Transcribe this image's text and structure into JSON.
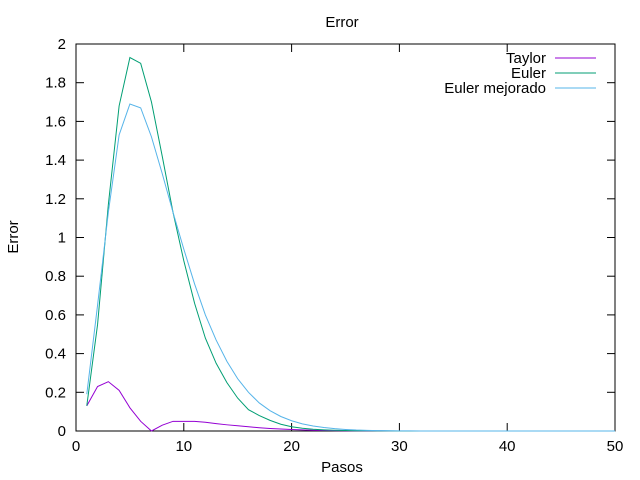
{
  "chart_data": {
    "type": "line",
    "title": "Error",
    "xlabel": "Pasos",
    "ylabel": "Error",
    "xlim": [
      0,
      50
    ],
    "ylim": [
      0,
      2
    ],
    "xticks": [
      0,
      10,
      20,
      30,
      40,
      50
    ],
    "yticks": [
      0,
      0.2,
      0.4,
      0.6,
      0.8,
      1,
      1.2,
      1.4,
      1.6,
      1.8,
      2
    ],
    "grid": false,
    "legend_position": "top-right",
    "series": [
      {
        "name": "Taylor",
        "color": "#9400d3",
        "x": [
          1,
          2,
          3,
          4,
          5,
          6,
          7,
          8,
          9,
          10,
          11,
          12,
          13,
          14,
          15,
          16,
          17,
          18,
          19,
          20,
          21,
          22,
          23,
          24,
          25,
          26,
          27,
          28,
          29,
          30,
          31,
          32,
          33,
          34,
          35,
          36,
          37,
          38,
          39,
          40,
          41,
          42,
          43,
          44,
          45,
          46,
          47,
          48,
          49,
          50
        ],
        "y": [
          0.13,
          0.23,
          0.255,
          0.21,
          0.12,
          0.05,
          0.0,
          0.03,
          0.05,
          0.05,
          0.05,
          0.045,
          0.038,
          0.032,
          0.027,
          0.022,
          0.017,
          0.013,
          0.01,
          0.008,
          0.006,
          0.004,
          0.003,
          0.002,
          0.0015,
          0.001,
          0.0007,
          0.0005,
          0.0003,
          0.0002,
          0,
          0,
          0,
          0,
          0,
          0,
          0,
          0,
          0,
          0,
          0,
          0,
          0,
          0,
          0,
          0,
          0,
          0,
          0,
          0
        ]
      },
      {
        "name": "Euler",
        "color": "#009e73",
        "x": [
          1,
          2,
          3,
          4,
          5,
          6,
          7,
          8,
          9,
          10,
          11,
          12,
          13,
          14,
          15,
          16,
          17,
          18,
          19,
          20,
          21,
          22,
          23,
          24,
          25,
          26,
          27,
          28,
          29,
          30,
          31,
          32,
          33,
          34,
          35,
          36,
          37,
          38,
          39,
          40,
          41,
          42,
          43,
          44,
          45,
          46,
          47,
          48,
          49,
          50
        ],
        "y": [
          0.13,
          0.55,
          1.17,
          1.68,
          1.93,
          1.9,
          1.7,
          1.42,
          1.13,
          0.88,
          0.66,
          0.48,
          0.35,
          0.25,
          0.17,
          0.11,
          0.08,
          0.055,
          0.035,
          0.022,
          0.014,
          0.009,
          0.006,
          0.004,
          0.0025,
          0.0015,
          0.001,
          0.0006,
          0.0004,
          0.0002,
          0,
          0,
          0,
          0,
          0,
          0,
          0,
          0,
          0,
          0,
          0,
          0,
          0,
          0,
          0,
          0,
          0,
          0,
          0,
          0
        ]
      },
      {
        "name": "Euler mejorado",
        "color": "#56b4e9",
        "x": [
          1,
          2,
          3,
          4,
          5,
          6,
          7,
          8,
          9,
          10,
          11,
          12,
          13,
          14,
          15,
          16,
          17,
          18,
          19,
          20,
          21,
          22,
          23,
          24,
          25,
          26,
          27,
          28,
          29,
          30,
          31,
          32,
          33,
          34,
          35,
          36,
          37,
          38,
          39,
          40,
          41,
          42,
          43,
          44,
          45,
          46,
          47,
          48,
          49,
          50
        ],
        "y": [
          0.19,
          0.65,
          1.13,
          1.53,
          1.69,
          1.67,
          1.52,
          1.33,
          1.13,
          0.94,
          0.76,
          0.6,
          0.47,
          0.36,
          0.27,
          0.2,
          0.145,
          0.105,
          0.075,
          0.053,
          0.037,
          0.026,
          0.018,
          0.012,
          0.008,
          0.005,
          0.0035,
          0.0022,
          0.0014,
          0.0009,
          0.0005,
          0.0003,
          0.0002,
          0.0001,
          0,
          0,
          0,
          0,
          0,
          0,
          0,
          0,
          0,
          0,
          0,
          0,
          0,
          0,
          0,
          0
        ]
      }
    ]
  }
}
